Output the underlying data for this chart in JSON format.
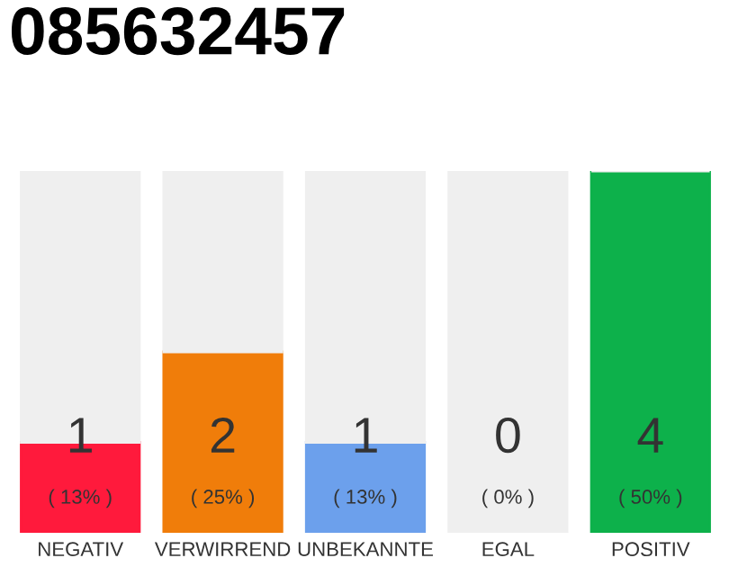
{
  "chart_data": {
    "type": "bar",
    "title": "085632457",
    "categories": [
      "NEGATIV",
      "VERWIRREND",
      "UNBEKANNTE",
      "EGAL",
      "POSITIV"
    ],
    "stacked": true,
    "ylim": [
      0,
      4
    ],
    "tick_labels": "x",
    "grid": false,
    "legend": false,
    "series": [
      {
        "colors": [
          "#ff1a3c",
          "#f07d0a",
          "#6ca0ec",
          "#b0b0b0",
          "#0db14b"
        ],
        "values": [
          1,
          2,
          1,
          0,
          4
        ],
        "value_labels": [
          "1\n( 13% )",
          "2\n( 25% )",
          "1\n( 13% )",
          "0\n( 0% )",
          "4\n( 50% )"
        ]
      },
      {
        "color": "#efefef",
        "values": [
          3,
          2,
          3,
          4,
          0
        ]
      }
    ]
  }
}
